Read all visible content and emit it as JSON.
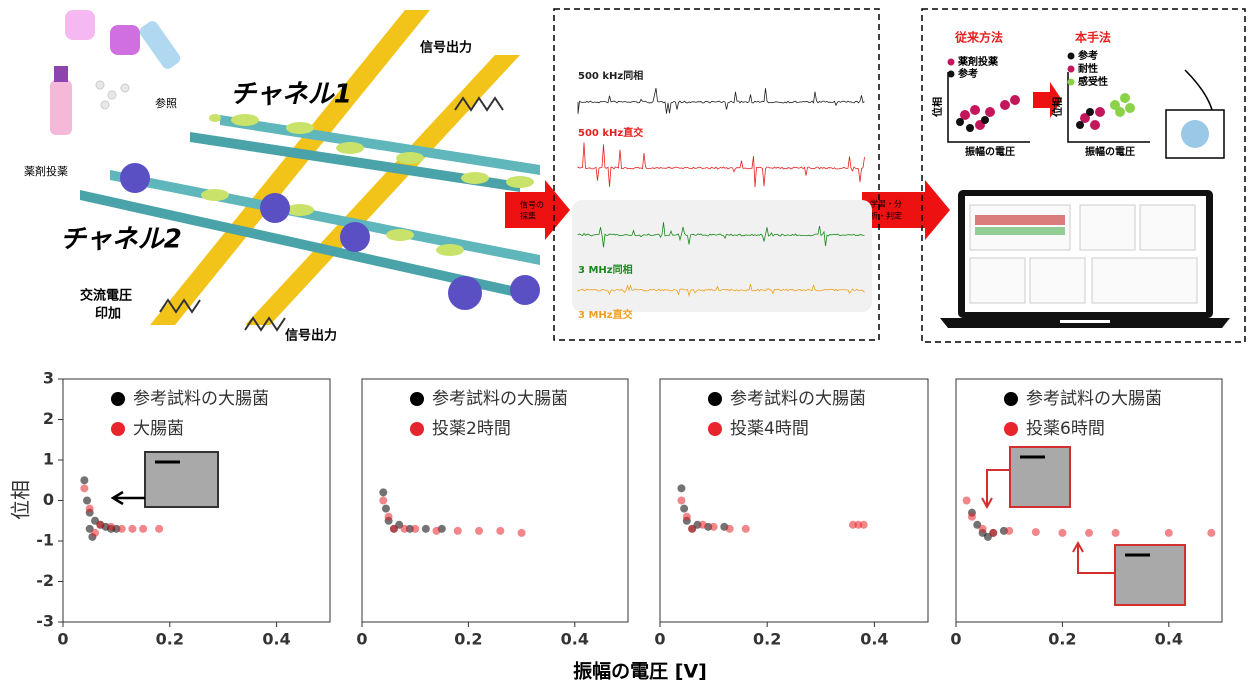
{
  "diagram": {
    "left": {
      "channel1": "チャネル1",
      "channel2": "チャネル2",
      "signal_out_1": "信号出力",
      "signal_out_2": "信号出力",
      "ac_voltage": [
        "交流電圧",
        "印加"
      ],
      "reference": "参照",
      "drug": "薬剤投薬"
    },
    "arrow1": [
      "信号の",
      "採集"
    ],
    "signals": [
      "500 kHz同相",
      "500 kHz直交",
      "3 MHz同相",
      "3 MHz直交"
    ],
    "arrow2": [
      "学習・分",
      "析・判定"
    ],
    "right": {
      "conventional": {
        "title": "従来方法",
        "legend": [
          "薬剤投薬",
          "参考"
        ],
        "y_label": "位相",
        "x_label": "振幅の電圧"
      },
      "proposed": {
        "title": "本手法",
        "legend": [
          "参考",
          "耐性",
          "感受性"
        ],
        "y_label": "位相",
        "x_label": "振幅の電圧"
      }
    }
  },
  "figure": {
    "x_label": "振幅の電圧 [V]",
    "y_label": "位相"
  },
  "chart_data": [
    {
      "type": "scatter",
      "xlim": [
        0,
        0.5
      ],
      "ylim": [
        -3,
        3
      ],
      "xticks": [
        0,
        0.2,
        0.4
      ],
      "yticks": [
        3,
        2,
        1,
        0,
        -1,
        -2,
        -3
      ],
      "series": [
        {
          "name": "参考試料の大腸菌",
          "color": "#000000",
          "x": [
            0.04,
            0.045,
            0.05,
            0.05,
            0.055,
            0.06,
            0.07,
            0.08,
            0.09,
            0.1
          ],
          "values": [
            0.5,
            0,
            -0.3,
            -0.7,
            -0.9,
            -0.5,
            -0.6,
            -0.65,
            -0.7,
            -0.7
          ]
        },
        {
          "name": "大腸菌",
          "color": "#e8242c",
          "x": [
            0.04,
            0.05,
            0.06,
            0.07,
            0.09,
            0.11,
            0.13,
            0.15,
            0.18
          ],
          "values": [
            0.3,
            -0.2,
            -0.8,
            -0.6,
            -0.65,
            -0.7,
            -0.7,
            -0.7,
            -0.7
          ]
        }
      ]
    },
    {
      "type": "scatter",
      "xlim": [
        0,
        0.5
      ],
      "ylim": [
        -3,
        3
      ],
      "xticks": [
        0,
        0.2,
        0.4
      ],
      "series": [
        {
          "name": "参考試料の大腸菌",
          "color": "#000000",
          "x": [
            0.04,
            0.045,
            0.05,
            0.06,
            0.07,
            0.09,
            0.12,
            0.15
          ],
          "values": [
            0.2,
            -0.2,
            -0.5,
            -0.7,
            -0.6,
            -0.7,
            -0.7,
            -0.7
          ]
        },
        {
          "name": "投薬2時間",
          "color": "#e8242c",
          "x": [
            0.04,
            0.05,
            0.06,
            0.08,
            0.1,
            0.14,
            0.18,
            0.22,
            0.26,
            0.3
          ],
          "values": [
            0,
            -0.4,
            -0.7,
            -0.7,
            -0.7,
            -0.75,
            -0.75,
            -0.75,
            -0.75,
            -0.8
          ]
        }
      ]
    },
    {
      "type": "scatter",
      "xlim": [
        0,
        0.5
      ],
      "ylim": [
        -3,
        3
      ],
      "xticks": [
        0,
        0.2,
        0.4
      ],
      "series": [
        {
          "name": "参考試料の大腸菌",
          "color": "#000000",
          "x": [
            0.04,
            0.045,
            0.05,
            0.06,
            0.07,
            0.09,
            0.12
          ],
          "values": [
            0.3,
            -0.2,
            -0.5,
            -0.7,
            -0.6,
            -0.65,
            -0.65
          ]
        },
        {
          "name": "投薬4時間",
          "color": "#e8242c",
          "x": [
            0.04,
            0.05,
            0.06,
            0.08,
            0.1,
            0.13,
            0.16,
            0.36,
            0.37,
            0.38
          ],
          "values": [
            0,
            -0.4,
            -0.7,
            -0.6,
            -0.65,
            -0.7,
            -0.7,
            -0.6,
            -0.6,
            -0.6
          ]
        }
      ]
    },
    {
      "type": "scatter",
      "xlim": [
        0,
        0.5
      ],
      "ylim": [
        -3,
        3
      ],
      "xticks": [
        0,
        0.2,
        0.4
      ],
      "series": [
        {
          "name": "参考試料の大腸菌",
          "color": "#000000",
          "x": [
            0.03,
            0.04,
            0.05,
            0.06,
            0.07,
            0.09
          ],
          "values": [
            -0.3,
            -0.6,
            -0.8,
            -0.9,
            -0.8,
            -0.75
          ]
        },
        {
          "name": "投薬6時間",
          "color": "#e8242c",
          "x": [
            0.02,
            0.03,
            0.05,
            0.07,
            0.1,
            0.15,
            0.2,
            0.25,
            0.3,
            0.4,
            0.48
          ],
          "values": [
            0,
            -0.4,
            -0.7,
            -0.8,
            -0.75,
            -0.78,
            -0.8,
            -0.8,
            -0.8,
            -0.8,
            -0.8
          ]
        }
      ]
    }
  ]
}
